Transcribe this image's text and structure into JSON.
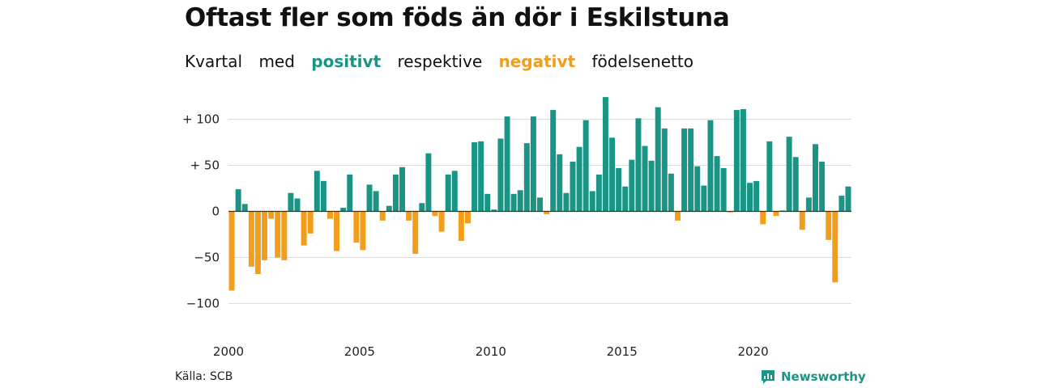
{
  "title": "Oftast fler som föds än dör i Eskilstuna",
  "subtitle": {
    "part1": "Kvartal",
    "part2": "med",
    "positive_word": "positivt",
    "part3": "respektive",
    "negative_word": "negativt",
    "part4": "födelsenetto"
  },
  "colors": {
    "positive": "#1a9585",
    "negative": "#f29e1b",
    "grid": "#dddddd",
    "axis": "#333333"
  },
  "source": "Källa: SCB",
  "brand": {
    "name": "Newsworthy",
    "icon": "newsworthy-logo-icon"
  },
  "chart_data": {
    "type": "bar",
    "title": "Oftast fler som föds än dör i Eskilstuna",
    "xlabel": "",
    "ylabel": "",
    "ylim": [
      -110,
      125
    ],
    "grid": true,
    "y_ticks": [
      100,
      50,
      0,
      -50,
      -100
    ],
    "y_tick_labels": [
      "+ 100",
      "+  50",
      "0",
      "−50",
      "−100"
    ],
    "x_tick_labels": [
      "2000",
      "2005",
      "2010",
      "2015",
      "2020"
    ],
    "start_year": 2000,
    "values": [
      -86,
      24,
      8,
      -60,
      -68,
      -53,
      -8,
      -50,
      -53,
      20,
      14,
      -37,
      -24,
      44,
      33,
      -8,
      -43,
      4,
      40,
      -34,
      -42,
      29,
      22,
      -10,
      6,
      40,
      48,
      -10,
      -46,
      9,
      63,
      -5,
      -22,
      40,
      44,
      -32,
      -13,
      75,
      76,
      19,
      2,
      79,
      103,
      19,
      23,
      74,
      103,
      15,
      -3,
      110,
      62,
      20,
      54,
      70,
      99,
      22,
      40,
      124,
      80,
      47,
      27,
      56,
      101,
      71,
      55,
      113,
      90,
      41,
      -10,
      90,
      90,
      49,
      28,
      99,
      60,
      47,
      -1,
      110,
      111,
      31,
      33,
      -14,
      76,
      -5,
      1,
      81,
      59,
      -20,
      15,
      73,
      54,
      -31,
      -77,
      17,
      27
    ]
  }
}
